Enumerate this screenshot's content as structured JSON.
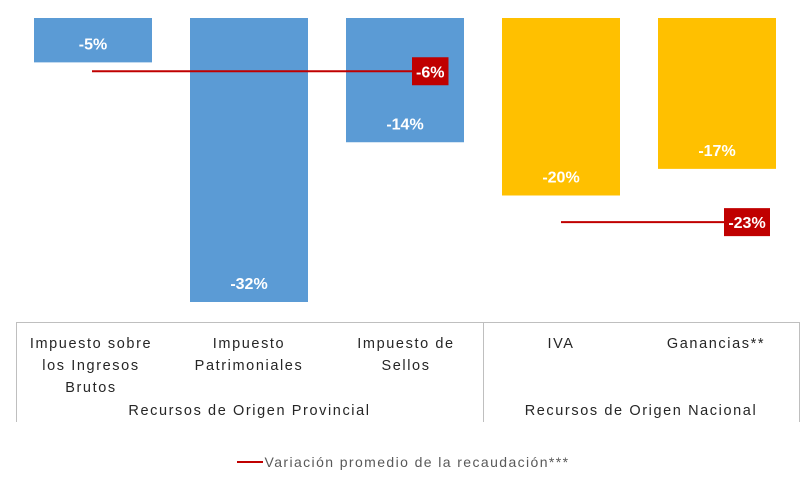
{
  "chart_data": {
    "type": "bar",
    "categories": [
      "Impuesto sobre\nlos Ingresos\nBrutos",
      "Impuesto\nPatrimoniales",
      "Impuesto de\nSellos",
      "IVA",
      "Ganancias**"
    ],
    "values": [
      -5,
      -32,
      -14,
      -20,
      -17
    ],
    "value_labels": [
      "-5%",
      "-32%",
      "-14%",
      "-20%",
      "-17%"
    ],
    "groups": [
      {
        "name": "Recursos de Origen Provincial",
        "categories": [
          0,
          1,
          2
        ],
        "color": "#5b9bd5"
      },
      {
        "name": "Recursos de Origen Nacional",
        "categories": [
          3,
          4
        ],
        "color": "#ffc000"
      }
    ],
    "average_lines": [
      {
        "group": 0,
        "value": -6,
        "label": "-6%"
      },
      {
        "group": 1,
        "value": -23,
        "label": "-23%"
      }
    ],
    "average_color": "#c00000",
    "legend": [
      "Variación promedio de la recaudación***"
    ],
    "ylim": [
      -32,
      0
    ],
    "grid": false,
    "legend_position": "bottom"
  }
}
